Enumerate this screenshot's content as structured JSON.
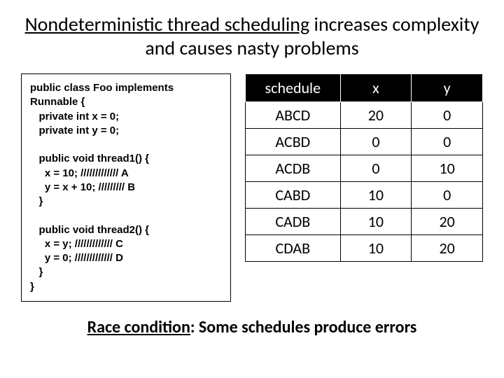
{
  "title_line1": "Nondeterministic thread scheduling",
  "title_rest": " increases complexity and causes nasty problems",
  "code": "public class Foo implements\nRunnable {\n   private int x = 0;\n   private int y = 0;\n\n   public void thread1() {\n     x = 10; ///////////// A\n     y = x + 10; ///////// B\n   }\n\n   public void thread2() {\n     x = y; ///////////// C\n     y = 0; ///////////// D\n   }\n}",
  "table": {
    "columns": [
      "schedule",
      "x",
      "y"
    ],
    "rows": [
      [
        "ABCD",
        "20",
        "0"
      ],
      [
        "ACBD",
        "0",
        "0"
      ],
      [
        "ACDB",
        "0",
        "10"
      ],
      [
        "CABD",
        "10",
        "0"
      ],
      [
        "CADB",
        "10",
        "20"
      ],
      [
        "CDAB",
        "10",
        "20"
      ]
    ],
    "header_bg": "#000000",
    "header_fg": "#ffffff",
    "cell_border": "#000000",
    "font_size": 22
  },
  "footer_label": "Race condition",
  "footer_rest": ": Some schedules produce errors",
  "colors": {
    "background": "#ffffff",
    "text": "#000000"
  }
}
